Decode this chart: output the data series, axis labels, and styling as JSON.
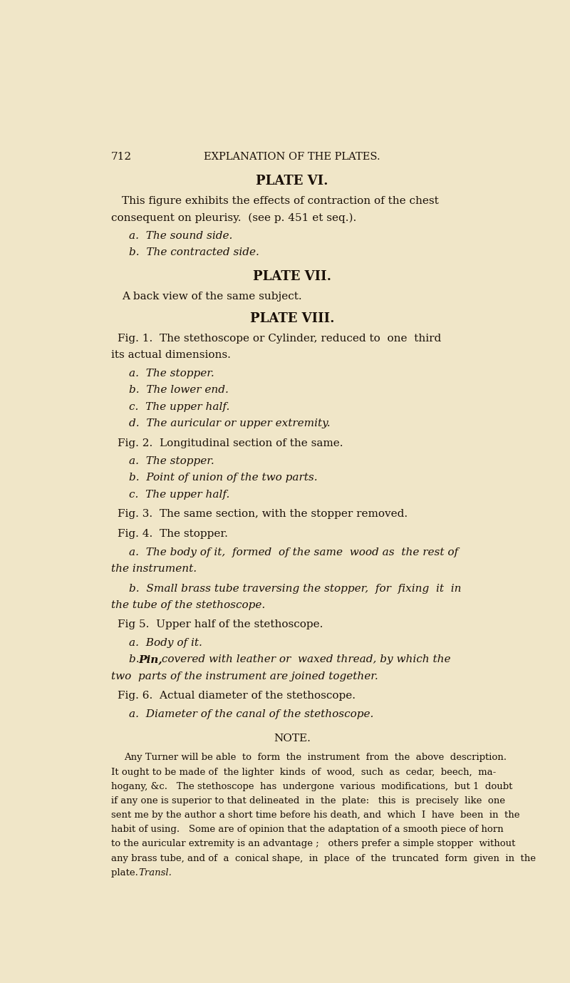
{
  "background_color": "#f0e6c8",
  "text_color": "#1a1008",
  "page_number": "712",
  "header": "EXPLANATION OF THE PLATES.",
  "plate_vi_title": "PLATE VI.",
  "plate_vi_a": "a.  The sound side.",
  "plate_vi_b": "b.  The contracted side.",
  "plate_vii_title": "PLATE VII.",
  "plate_vii_body": "A back view of the same subject.",
  "plate_viii_title": "PLATE VIII.",
  "plate_viii_fig1_a": "a.  The stopper.",
  "plate_viii_fig1_b": "b.  The lower end.",
  "plate_viii_fig1_c": "c.  The upper half.",
  "plate_viii_fig1_d": "d.  The auricular or upper extremity.",
  "plate_viii_fig2": "Fig. 2.  Longitudinal section of the same.",
  "plate_viii_fig2_a": "a.  The stopper.",
  "plate_viii_fig2_b": "b.  Point of union of the two parts.",
  "plate_viii_fig2_c": "c.  The upper half.",
  "plate_viii_fig3": "Fig. 3.  The same section, with the stopper removed.",
  "plate_viii_fig4": "Fig. 4.  The stopper.",
  "plate_viii_fig5": "Fig 5.  Upper half of the stethoscope.",
  "plate_viii_fig5_a": "a.  Body of it.",
  "plate_viii_fig6": "Fig. 6.  Actual diameter of the stethoscope.",
  "plate_viii_fig6_a": "a.  Diameter of the canal of the stethoscope.",
  "note_title": "NOTE.",
  "note_lines": [
    "Any Turner will be able  to  form  the  instrument  from  the  above  description.",
    "It ought to be made of  the lighter  kinds  of  wood,  such  as  cedar,  beech,  ma-",
    "hogany, &c.   The stethoscope  has  undergone  various  modifications,  but 1  doubt",
    "if any one is superior to that delineated  in  the  plate:   this  is  precisely  like  one",
    "sent me by the author a short time before his death, and  which  I  have  been  in  the",
    "habit of using.   Some are of opinion that the adaptation of a smooth piece of horn",
    "to the auricular extremity is an advantage ;   others prefer a simple stopper  without",
    "any brass tube, and of  a  conical shape,  in  place  of  the  truncated  form  given  in  the",
    "plate.   Transl."
  ]
}
